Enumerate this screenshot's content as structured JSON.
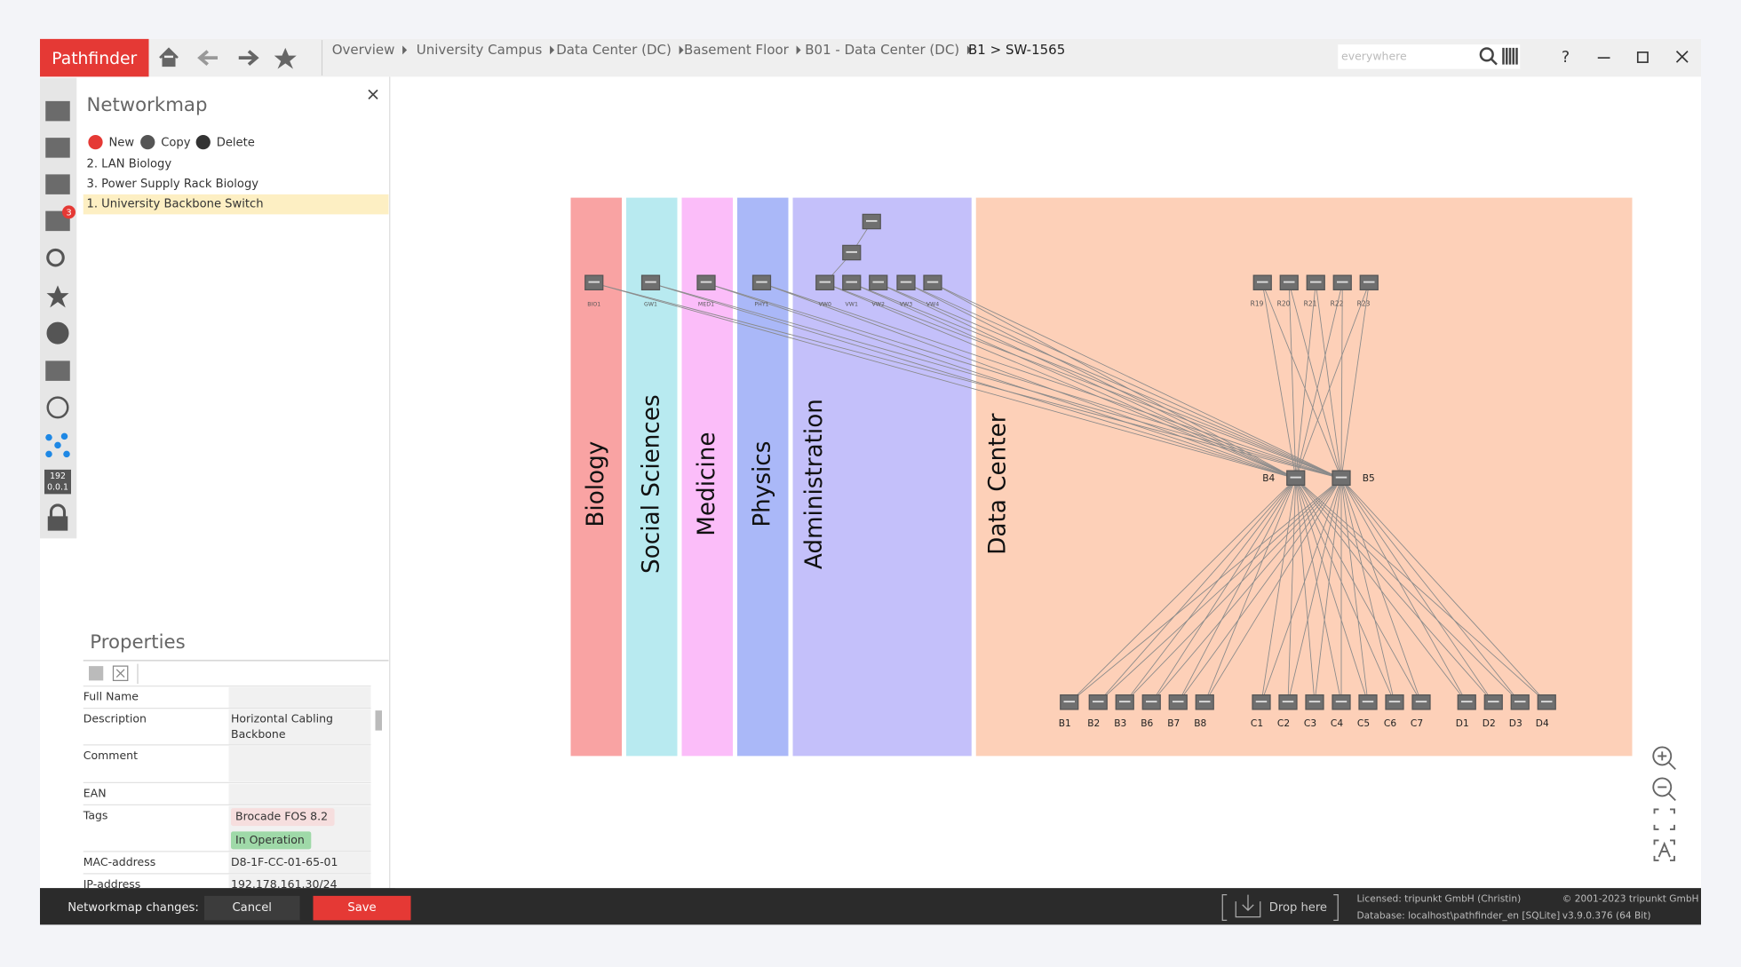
{
  "app_name": "Pathfinder",
  "breadcrumbs": [
    "Overview",
    "University Campus",
    "Data Center (DC)",
    "Basement Floor",
    "B01 - Data Center (DC)",
    "B1 > SW-1565"
  ],
  "search_placeholder": "everywhere",
  "help": "?",
  "sidebar": {
    "badge": "3",
    "ip_icon": [
      "192",
      "0.0.1"
    ]
  },
  "networkmap": {
    "title": "Networkmap",
    "actions": [
      "New",
      "Copy",
      "Delete"
    ],
    "items": [
      "2. LAN Biology",
      "3. Power Supply Rack Biology",
      "1. University Backbone Switch"
    ]
  },
  "properties": {
    "title": "Properties",
    "rows": [
      {
        "label": "Full Name"
      },
      {
        "label": "Description",
        "value": [
          "Horizontal Cabling",
          "Backbone"
        ]
      },
      {
        "label": "Comment"
      },
      {
        "label": "EAN"
      },
      {
        "label": "Tags",
        "tags": [
          "Brocade FOS 8.2",
          "In Operation"
        ]
      },
      {
        "label": "MAC-address",
        "value": [
          "D8-1F-CC-01-65-01"
        ]
      },
      {
        "label": "IP-address",
        "value": [
          "192.178.161.30/24"
        ]
      }
    ]
  },
  "map": {
    "zones": [
      {
        "name": "Biology",
        "color": "#f9a3a3"
      },
      {
        "name": "Social Sciences",
        "color": "#b8eaf0"
      },
      {
        "name": "Medicine",
        "color": "#fbbdf9"
      },
      {
        "name": "Physics",
        "color": "#aab8f8"
      },
      {
        "name": "Administration",
        "color": "#c4c0fa"
      },
      {
        "name": "Data Center",
        "color": "#fdd0b8"
      }
    ],
    "top_devices": [
      "BIO1",
      "GW1",
      "MED1",
      "PHY1",
      "VW0",
      "VW1",
      "VW2",
      "VW3",
      "VW4"
    ],
    "rack_devices": [
      "R19",
      "R20",
      "R21",
      "R22",
      "R23"
    ],
    "core_devices": [
      "B4",
      "B5"
    ],
    "bottom_devices": [
      "B1",
      "B2",
      "B3",
      "B6",
      "B7",
      "B8",
      "C1",
      "C2",
      "C3",
      "C4",
      "C5",
      "C6",
      "C7",
      "D1",
      "D2",
      "D3",
      "D4"
    ]
  },
  "footer": {
    "changes": "Networkmap changes:",
    "cancel": "Cancel",
    "save": "Save",
    "drop": "Drop here",
    "license": [
      "Licensed: tripunkt GmbH (Christin)",
      "Database: localhost\\pathfinder_en [SQLite]"
    ],
    "copyright": [
      "© 2001-2023 tripunkt GmbH",
      "v3.9.0.376 (64 Bit)"
    ]
  }
}
